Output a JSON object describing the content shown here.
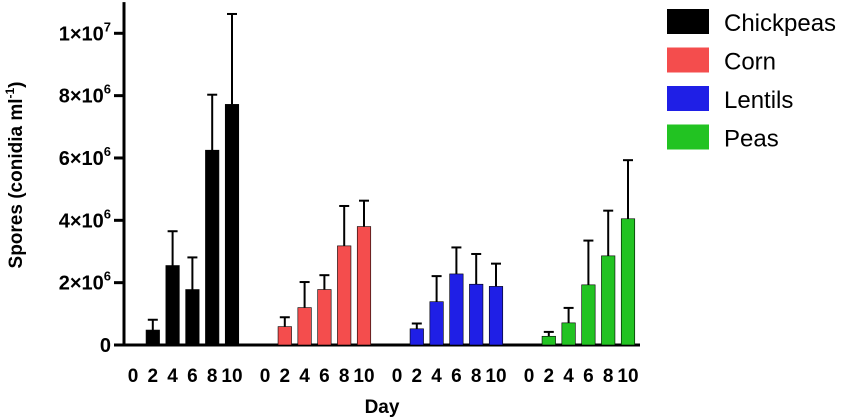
{
  "chart_data": {
    "type": "bar",
    "xlabel": "Day",
    "ylabel": "Spores (conidia ml",
    "ylabel_superscript": "-1",
    "ylabel_close": ")",
    "ylim": [
      0,
      11000000
    ],
    "y_ticks": [
      {
        "value": 0,
        "label": "0",
        "exp": ""
      },
      {
        "value": 2000000,
        "label": "2×10",
        "exp": "6"
      },
      {
        "value": 4000000,
        "label": "4×10",
        "exp": "6"
      },
      {
        "value": 6000000,
        "label": "6×10",
        "exp": "6"
      },
      {
        "value": 8000000,
        "label": "8×10",
        "exp": "6"
      },
      {
        "value": 10000000,
        "label": "1×10",
        "exp": "7"
      }
    ],
    "categories": [
      "0",
      "2",
      "4",
      "6",
      "8",
      "10"
    ],
    "legend_position": "top-right",
    "grid": false,
    "series": [
      {
        "name": "Chickpeas",
        "color": "#000000",
        "values": [
          0,
          480000,
          2550000,
          1780000,
          6250000,
          7720000
        ],
        "errors": [
          0,
          330000,
          1100000,
          1030000,
          1780000,
          2900000
        ]
      },
      {
        "name": "Corn",
        "color": "#f44d4d",
        "values": [
          0,
          590000,
          1200000,
          1780000,
          3180000,
          3800000
        ],
        "errors": [
          0,
          300000,
          820000,
          460000,
          1280000,
          830000
        ]
      },
      {
        "name": "Lentils",
        "color": "#1f1fe6",
        "values": [
          0,
          520000,
          1390000,
          2280000,
          1950000,
          1880000
        ],
        "errors": [
          0,
          170000,
          820000,
          850000,
          970000,
          730000
        ]
      },
      {
        "name": "Peas",
        "color": "#22c322",
        "values": [
          0,
          280000,
          710000,
          1930000,
          2860000,
          4050000
        ],
        "errors": [
          0,
          140000,
          480000,
          1420000,
          1450000,
          1880000
        ]
      }
    ]
  }
}
